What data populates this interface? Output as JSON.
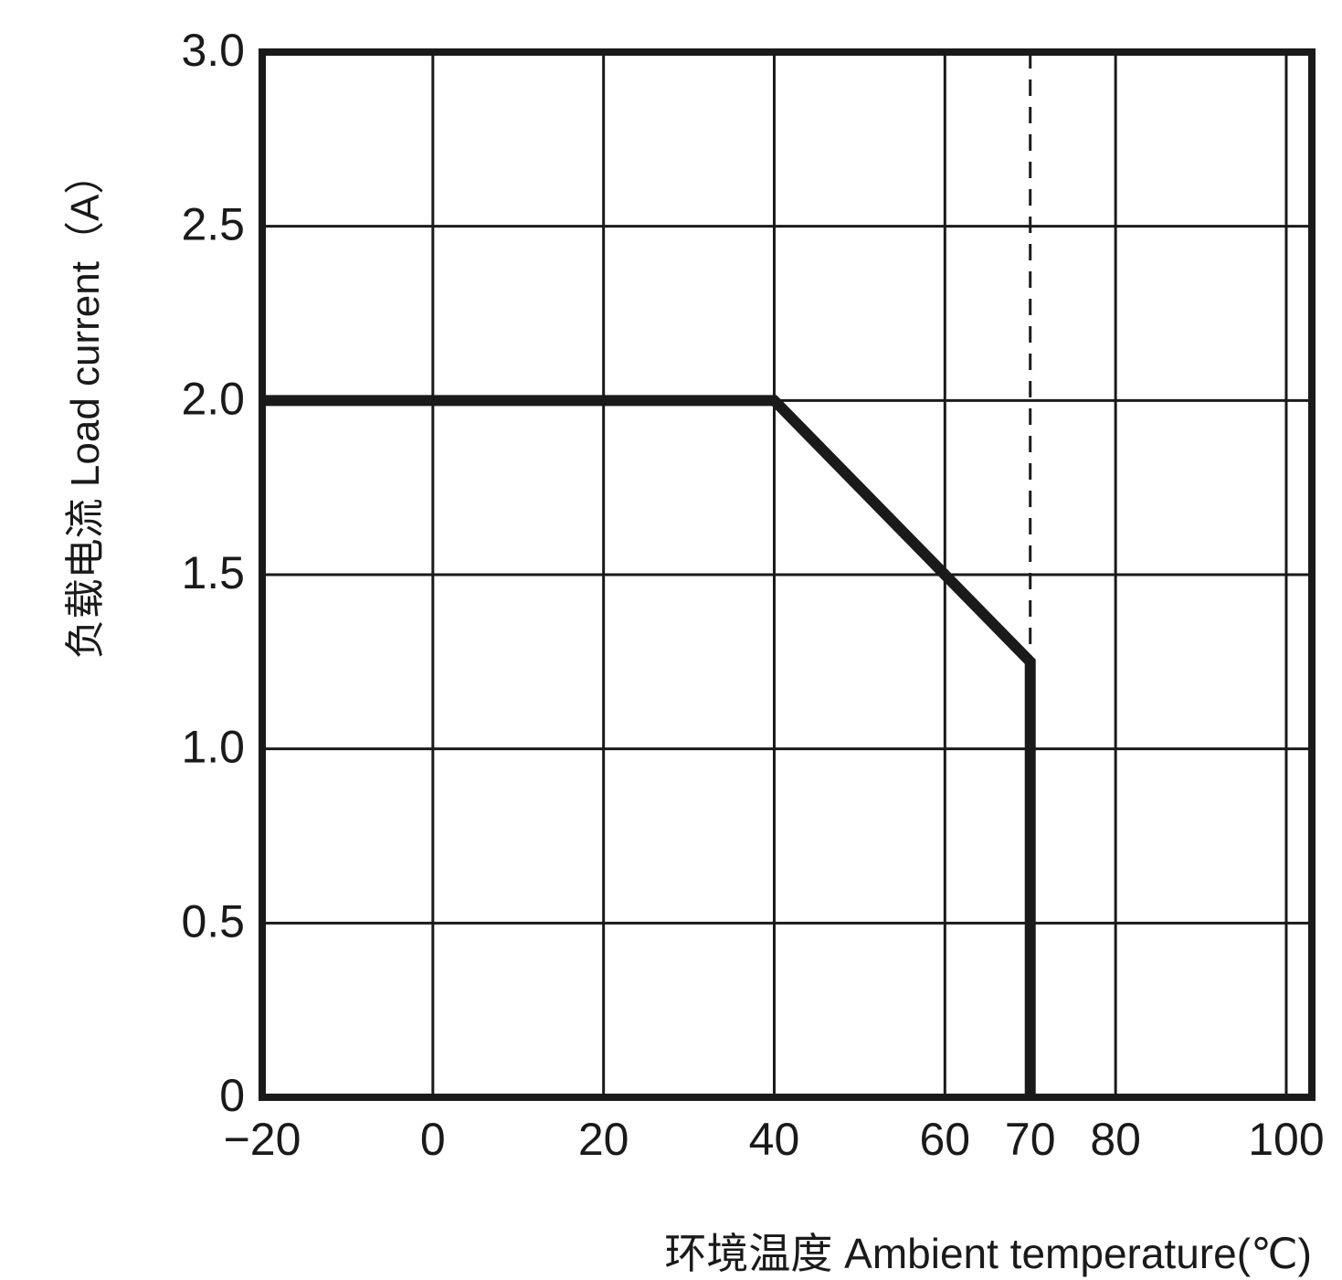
{
  "chart_data": {
    "type": "line",
    "xlabel": "环境温度 Ambient temperature(℃)",
    "ylabel": "负载电流 Load current（A）",
    "x_ticks": [
      "−20",
      "0",
      "20",
      "40",
      "60",
      "70",
      "80",
      "100"
    ],
    "y_ticks": [
      "0",
      "0.5",
      "1.0",
      "1.5",
      "2.0",
      "2.5",
      "3.0"
    ],
    "xlim": [
      -20,
      103
    ],
    "ylim": [
      0,
      3.0
    ],
    "x_grid": [
      0,
      20,
      40,
      60,
      80,
      100
    ],
    "y_grid": [
      0.5,
      1.0,
      1.5,
      2.0,
      2.5
    ],
    "grid": true,
    "series": [
      {
        "x": [
          -20,
          40,
          60,
          70,
          70
        ],
        "y": [
          2.0,
          2.0,
          1.5,
          1.25,
          0
        ],
        "color": "#1a1a1a"
      }
    ],
    "reference_lines": [
      {
        "orientation": "vertical",
        "x": 70,
        "style": "dashed",
        "color": "#1a1a1a"
      }
    ]
  }
}
